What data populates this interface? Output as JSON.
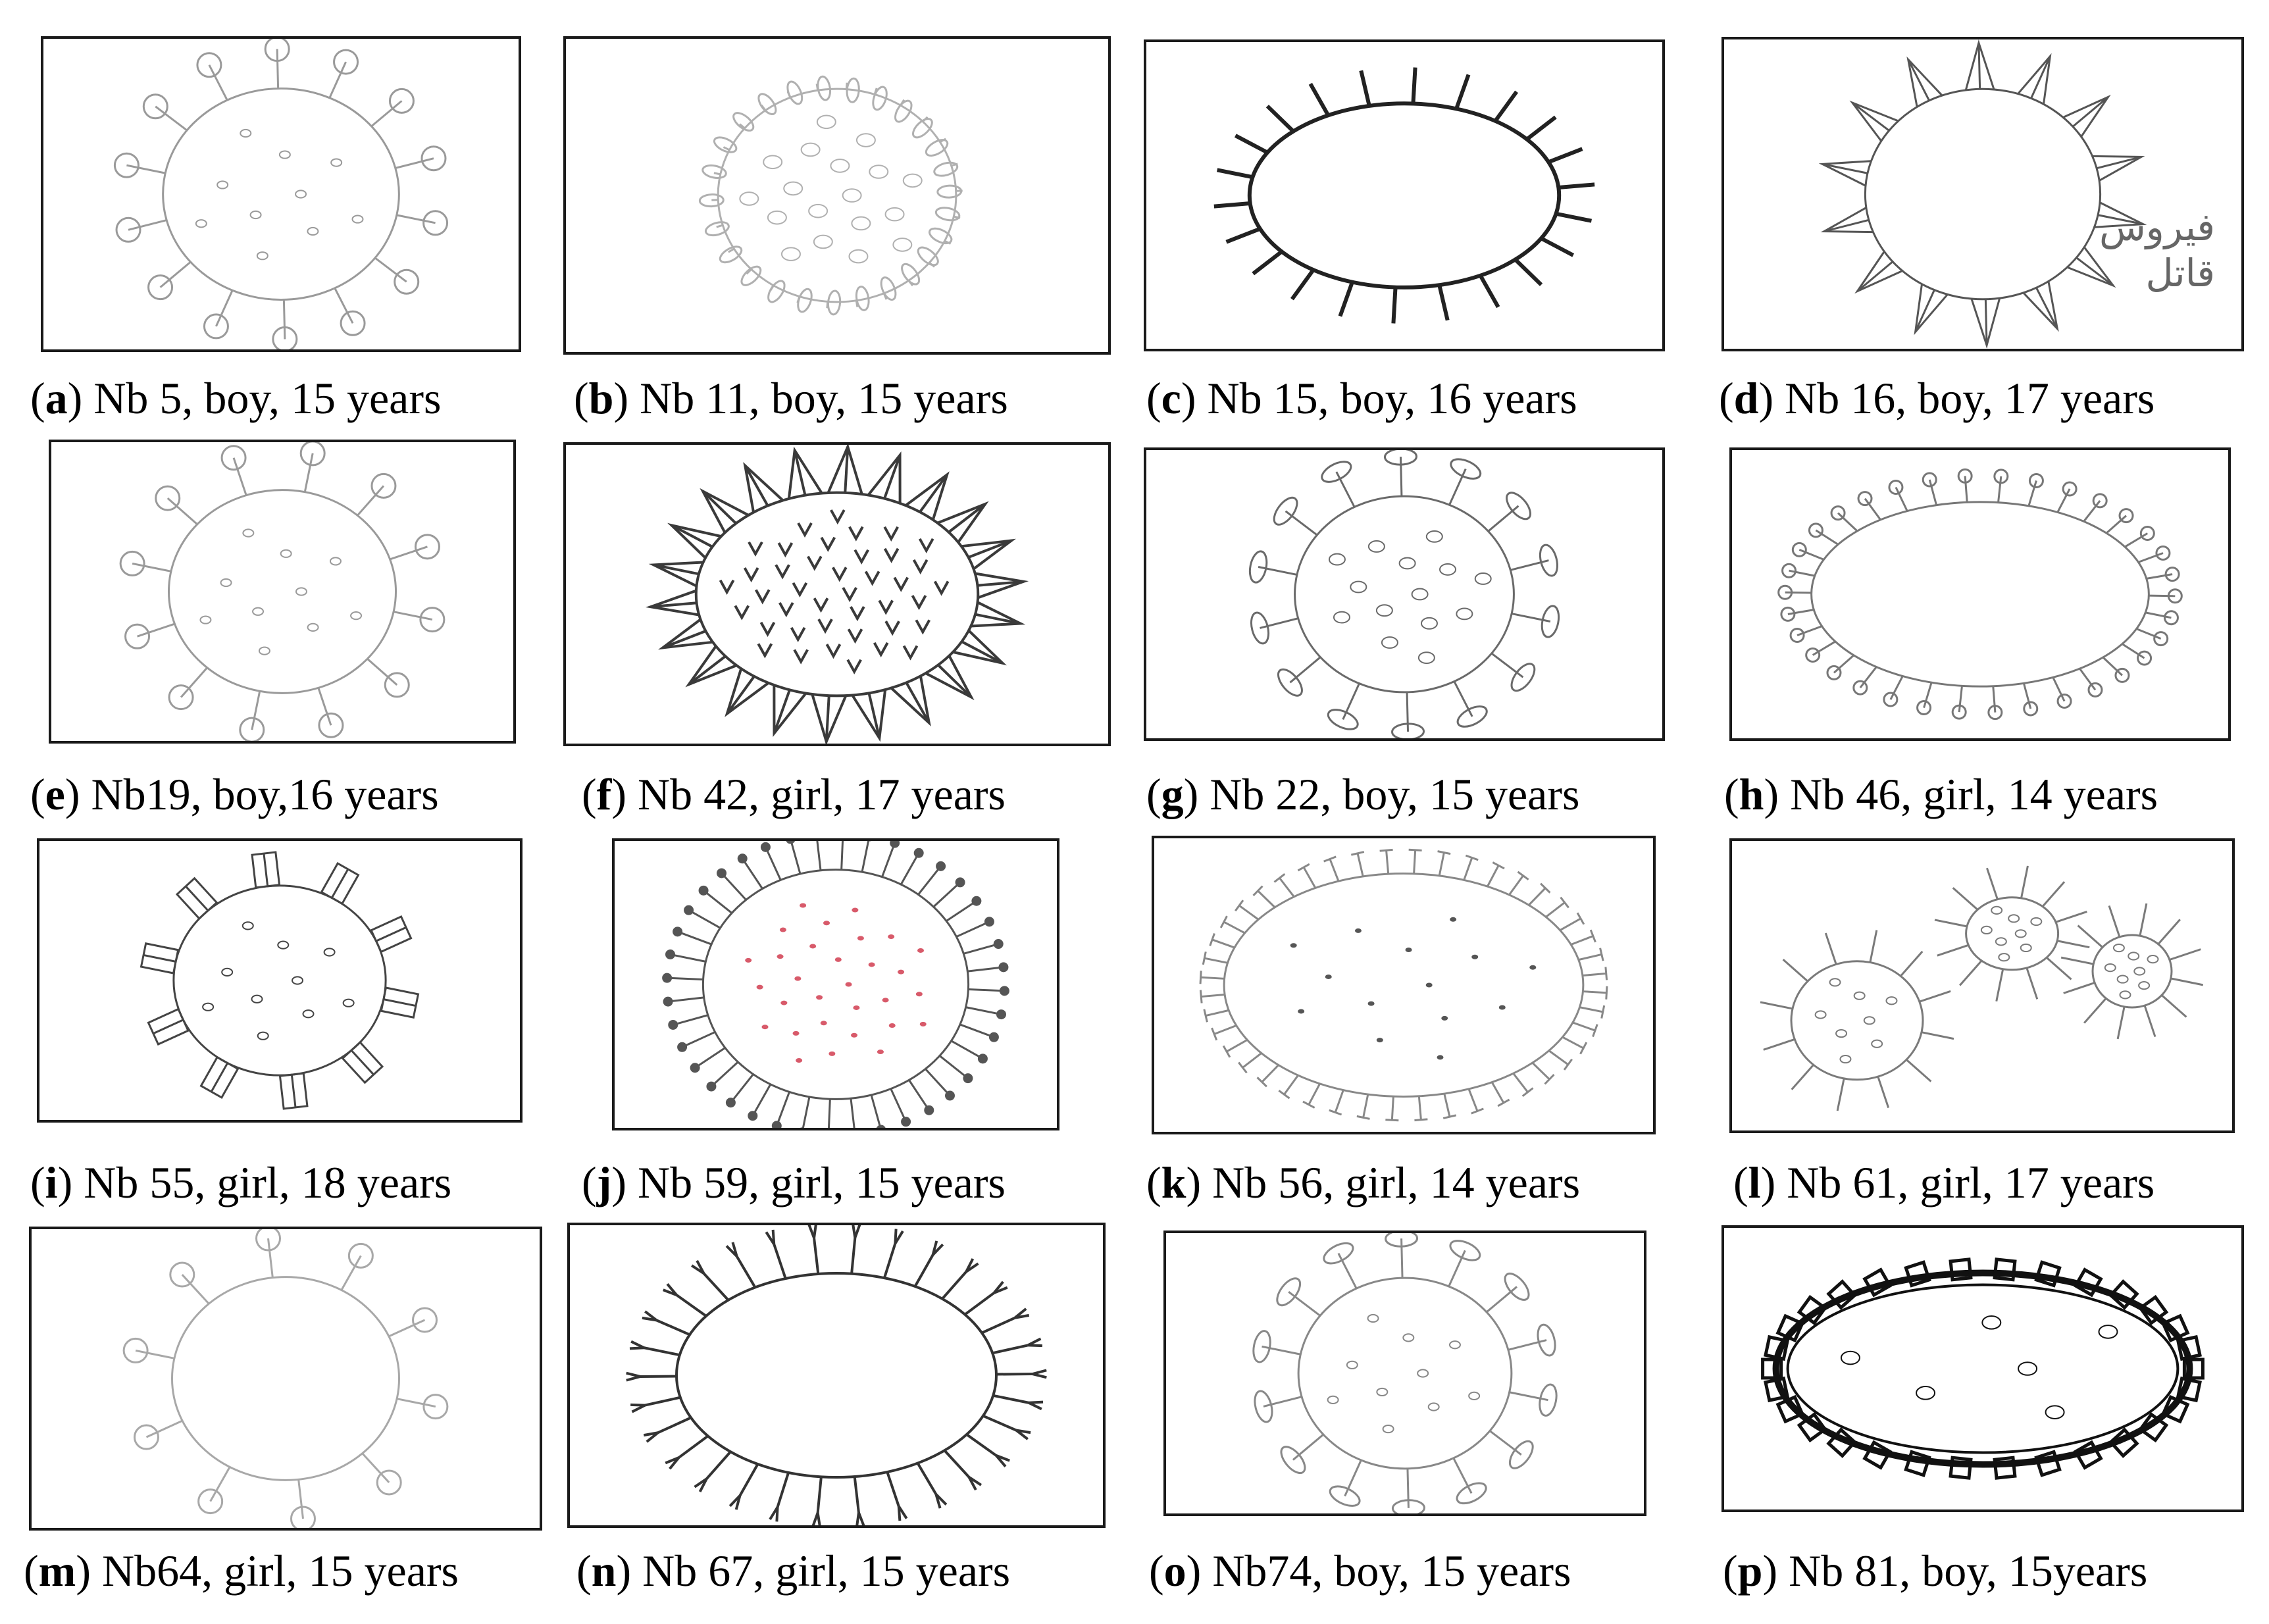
{
  "panels": [
    {
      "letter": "a",
      "text": "Nb 5, boy, 15 years",
      "style": "knob",
      "stroke": "#9a9a9a",
      "fill": "none"
    },
    {
      "letter": "b",
      "text": "Nb 11, boy, 15 years",
      "style": "loops",
      "stroke": "#b0b0b0",
      "fill": "none"
    },
    {
      "letter": "c",
      "text": "Nb 15, boy, 16 years",
      "style": "dark-spikes",
      "stroke": "#222222",
      "fill": "none"
    },
    {
      "letter": "d",
      "text": "Nb 16, boy, 17 years",
      "style": "sketch-spikes",
      "stroke": "#555555",
      "fill": "none",
      "arabic_line1": "فيروس",
      "arabic_line2": "قاتل"
    },
    {
      "letter": "e",
      "text": "Nb19, boy,16 years",
      "style": "knob-sparse",
      "stroke": "#9a9a9a",
      "fill": "none"
    },
    {
      "letter": "f",
      "text": "Nb 42, girl, 17 years",
      "style": "dense",
      "stroke": "#3a3a3a",
      "fill": "none"
    },
    {
      "letter": "g",
      "text": "Nb 22, boy, 15 years",
      "style": "mushroom",
      "stroke": "#6a6a6a",
      "fill": "none"
    },
    {
      "letter": "h",
      "text": "Nb 46, girl, 14 years",
      "style": "lollipop",
      "stroke": "#777777",
      "fill": "none"
    },
    {
      "letter": "i",
      "text": "Nb 55, girl, 18 years",
      "style": "blocks",
      "stroke": "#444444",
      "fill": "none"
    },
    {
      "letter": "j",
      "text": "Nb 59, girl, 15 years",
      "style": "pins",
      "stroke": "#555555",
      "fill": "#d85a6a"
    },
    {
      "letter": "k",
      "text": "Nb 56, girl, 14 years",
      "style": "tees",
      "stroke": "#888888",
      "fill": "none"
    },
    {
      "letter": "l",
      "text": "Nb 61, girl, 17 years",
      "style": "cluster",
      "stroke": "#7a7a7a",
      "fill": "none"
    },
    {
      "letter": "m",
      "text": "Nb64, girl, 15 years",
      "style": "knob-light",
      "stroke": "#a8a8a8",
      "fill": "none"
    },
    {
      "letter": "n",
      "text": "Nb 67, girl, 15 years",
      "style": "antibody",
      "stroke": "#333333",
      "fill": "none"
    },
    {
      "letter": "o",
      "text": "Nb74, boy, 15 years",
      "style": "mushroom-light",
      "stroke": "#888888",
      "fill": "none"
    },
    {
      "letter": "p",
      "text": "Nb 81, boy, 15years",
      "style": "chain",
      "stroke": "#111111",
      "fill": "none"
    }
  ]
}
